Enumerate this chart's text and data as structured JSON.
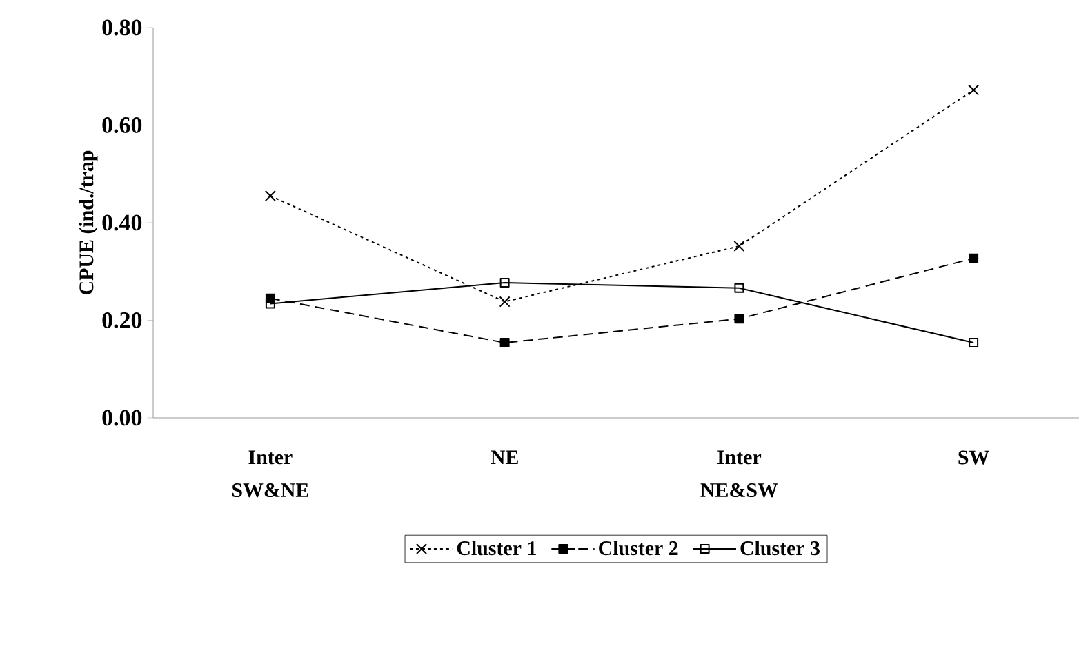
{
  "chart_data": {
    "type": "line",
    "ylabel": "CPUE (ind./trap",
    "categories": [
      "Inter SW&NE",
      "NE",
      "Inter NE&SW",
      "SW"
    ],
    "series": [
      {
        "name": "Cluster 1",
        "color": "#000000",
        "marker": "cross",
        "line_style": "dotted",
        "values": [
          0.455,
          0.238,
          0.352,
          0.672
        ]
      },
      {
        "name": "Cluster 2",
        "color": "#000000",
        "marker": "square",
        "line_style": "dashed",
        "values": [
          0.245,
          0.154,
          0.203,
          0.327
        ]
      },
      {
        "name": "Cluster 3",
        "color": "#000000",
        "marker": "square",
        "line_style": "solid",
        "values": [
          0.234,
          0.277,
          0.266,
          0.154
        ]
      }
    ],
    "ylim": [
      0,
      0.8
    ],
    "yticks": [
      {
        "value": 0,
        "label": "0.00"
      },
      {
        "value": 0.2,
        "label": "0.20"
      },
      {
        "value": 0.4,
        "label": "0.40"
      },
      {
        "value": 0.6,
        "label": "0.60"
      },
      {
        "value": 0.8,
        "label": "0.80"
      }
    ],
    "grid": false,
    "legend": "bottom"
  }
}
